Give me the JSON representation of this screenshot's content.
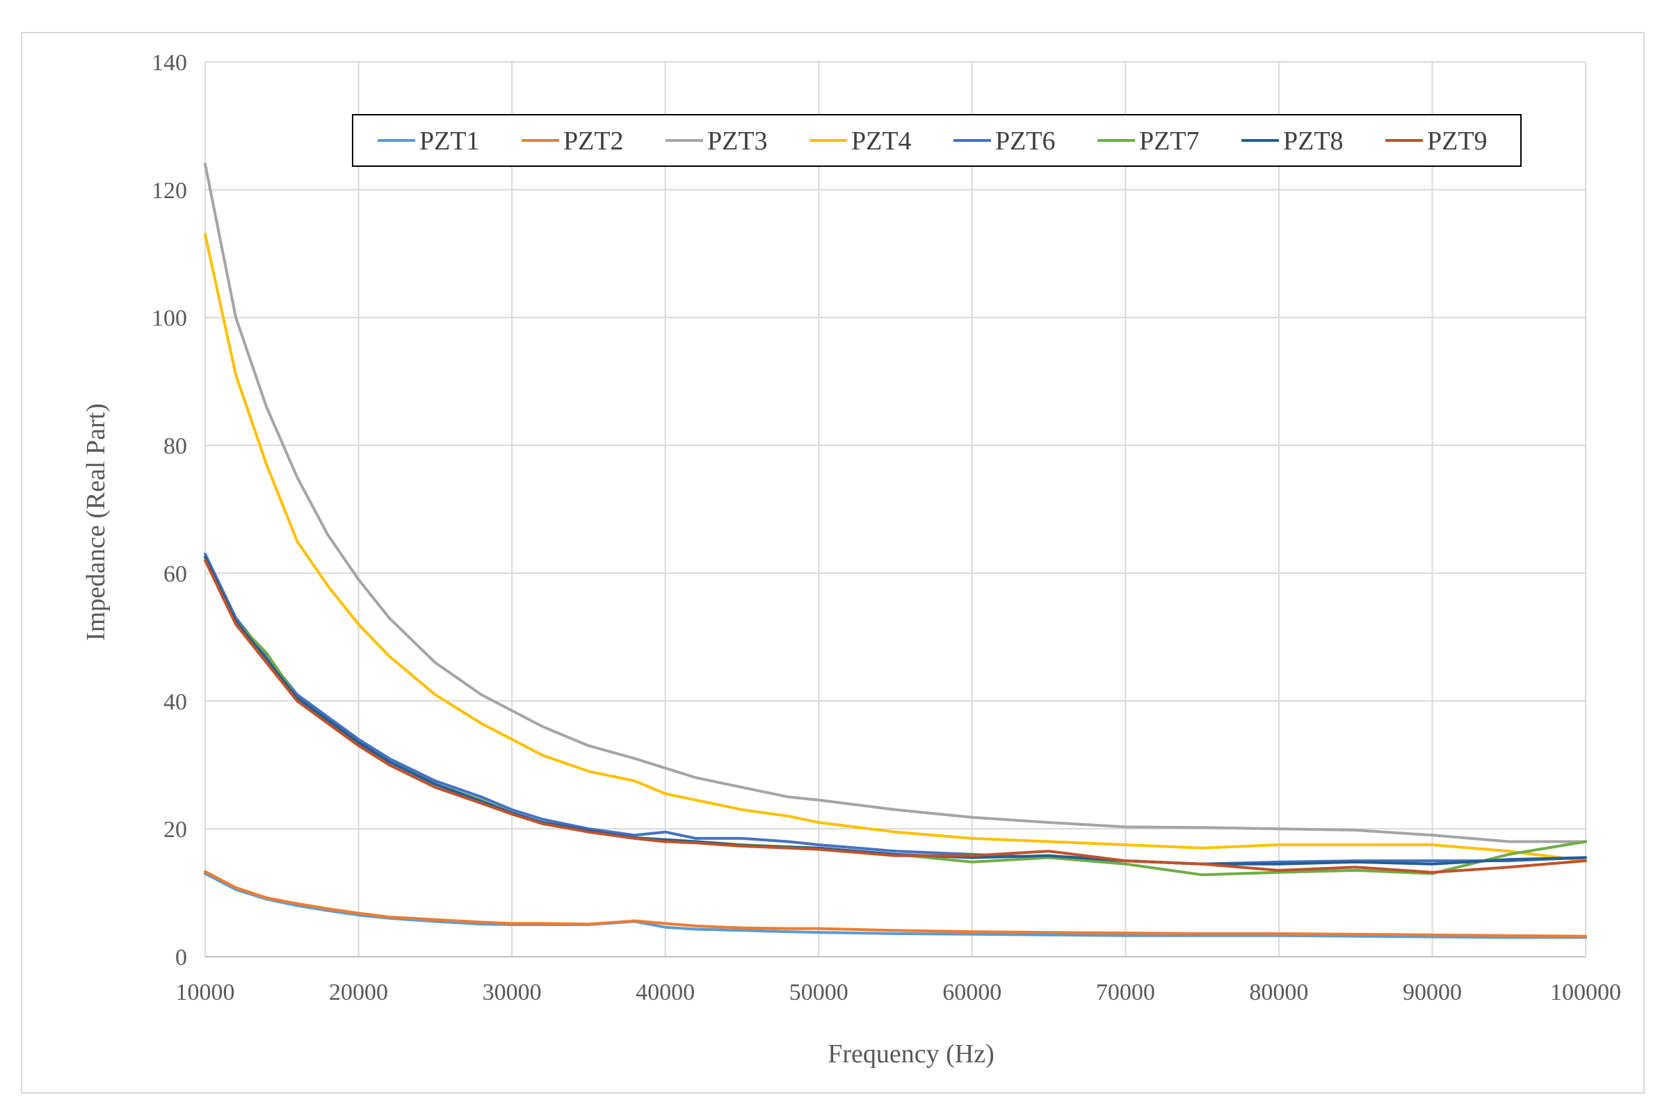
{
  "chart_data": {
    "type": "line",
    "title": "",
    "xlabel": "Frequency  (Hz)",
    "ylabel": "Impedance  (Real Part)",
    "xlim": [
      10000,
      100000
    ],
    "ylim": [
      0,
      140
    ],
    "xticks": [
      10000,
      20000,
      30000,
      40000,
      50000,
      60000,
      70000,
      80000,
      90000,
      100000
    ],
    "yticks": [
      0,
      20,
      40,
      60,
      80,
      100,
      120,
      140
    ],
    "grid": true,
    "legend_position": "top",
    "x": [
      10000,
      12000,
      14000,
      16000,
      18000,
      20000,
      22000,
      25000,
      28000,
      30000,
      32000,
      35000,
      38000,
      40000,
      42000,
      45000,
      48000,
      50000,
      55000,
      60000,
      65000,
      70000,
      75000,
      80000,
      85000,
      90000,
      95000,
      100000
    ],
    "series": [
      {
        "name": "PZT1",
        "color": "#5b9bd5",
        "values": [
          13,
          10.5,
          9,
          8,
          7.2,
          6.5,
          6,
          5.5,
          5.1,
          5,
          5,
          5,
          5.5,
          4.6,
          4.3,
          4.1,
          3.9,
          3.8,
          3.6,
          3.5,
          3.4,
          3.3,
          3.3,
          3.3,
          3.2,
          3.1,
          3,
          3
        ]
      },
      {
        "name": "PZT2",
        "color": "#ed7d31",
        "values": [
          13.3,
          10.8,
          9.2,
          8.3,
          7.5,
          6.8,
          6.2,
          5.8,
          5.4,
          5.2,
          5.2,
          5.1,
          5.6,
          5.2,
          4.8,
          4.5,
          4.4,
          4.4,
          4.1,
          3.9,
          3.8,
          3.7,
          3.6,
          3.6,
          3.5,
          3.4,
          3.3,
          3.2
        ]
      },
      {
        "name": "PZT3",
        "color": "#a5a5a5",
        "values": [
          124,
          100,
          86,
          75,
          66,
          59,
          53,
          46,
          41,
          38.5,
          36,
          33,
          31,
          29.5,
          28,
          26.5,
          25,
          24.5,
          23,
          21.8,
          21,
          20.3,
          20.2,
          20,
          19.8,
          19,
          18,
          18
        ]
      },
      {
        "name": "PZT4",
        "color": "#ffc000",
        "values": [
          113,
          91,
          77,
          65,
          58,
          52,
          47,
          41,
          36.5,
          34,
          31.5,
          29,
          27.5,
          25.5,
          24.5,
          23,
          22,
          21,
          19.5,
          18.5,
          18,
          17.5,
          17,
          17.5,
          17.5,
          17.5,
          16.5,
          15
        ]
      },
      {
        "name": "PZT6",
        "color": "#4472c4",
        "values": [
          63,
          53,
          47,
          41,
          37.5,
          34,
          31,
          27.5,
          25,
          23,
          21.5,
          20,
          19,
          19.5,
          18.5,
          18.5,
          18,
          17.5,
          16.5,
          16,
          15.5,
          15,
          14.5,
          14.8,
          15,
          15,
          15,
          15.5
        ]
      },
      {
        "name": "PZT7",
        "color": "#70ad47",
        "values": [
          62.5,
          52.5,
          47.5,
          40.5,
          37,
          33.5,
          30.5,
          27,
          24.5,
          22.5,
          21,
          19.5,
          18.5,
          18,
          18,
          17.5,
          17.2,
          17,
          16,
          14.8,
          15.5,
          14.5,
          12.8,
          13.2,
          13.5,
          13,
          16,
          18
        ]
      },
      {
        "name": "PZT8",
        "color": "#255e91",
        "values": [
          62.5,
          52.5,
          46.5,
          40.5,
          37,
          33.5,
          30.5,
          27,
          24.3,
          22.5,
          21,
          19.7,
          18.6,
          18.3,
          18,
          17.4,
          17.1,
          17,
          16,
          15.5,
          15.8,
          15,
          14.5,
          14.5,
          14.8,
          14.5,
          15.2,
          15.5
        ]
      },
      {
        "name": "PZT9",
        "color": "#c0522b",
        "values": [
          62,
          52,
          46,
          40,
          36.5,
          33,
          30,
          26.5,
          24,
          22.3,
          20.8,
          19.5,
          18.5,
          18,
          17.8,
          17.3,
          17,
          16.8,
          15.8,
          15.8,
          16.5,
          15,
          14.5,
          13.5,
          14,
          13.2,
          14,
          15
        ]
      }
    ]
  }
}
